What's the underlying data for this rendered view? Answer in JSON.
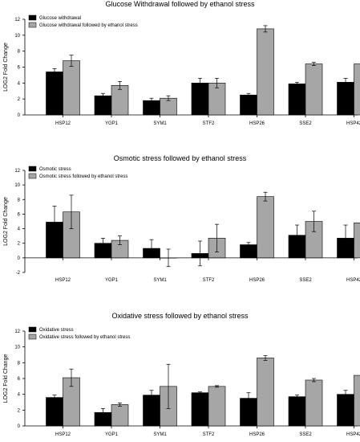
{
  "chart_data": [
    {
      "type": "bar",
      "title": "Glucose Withdrawal followed by ethanol stress",
      "ylabel": "LOG2 Fold Change",
      "ylim": [
        0,
        12
      ],
      "yticks": [
        0,
        2,
        4,
        6,
        8,
        10,
        12
      ],
      "categories": [
        "HSP12",
        "YGP1",
        "SYM1",
        "STF2",
        "HSP26",
        "SSE2",
        "HSP42"
      ],
      "legend_position": "top-left",
      "series": [
        {
          "name": "Glucose withdrawal",
          "color": "#000000",
          "values": [
            5.4,
            2.4,
            1.8,
            4.0,
            2.5,
            3.9,
            4.1
          ],
          "errors": [
            0.4,
            0.3,
            0.3,
            0.6,
            0.2,
            0.2,
            0.5
          ]
        },
        {
          "name": "Glucose withdrawal followed by ethanol stress",
          "color": "#a6a6a6",
          "values": [
            6.8,
            3.7,
            2.1,
            4.0,
            10.8,
            6.4,
            6.4
          ],
          "errors": [
            0.7,
            0.5,
            0.3,
            0.6,
            0.4,
            0.2,
            0.2
          ]
        }
      ]
    },
    {
      "type": "bar",
      "title": "Osmotic stress followed by ethanol stress",
      "ylabel": "LOG2 Fold Change",
      "ylim": [
        -2,
        12
      ],
      "yticks": [
        -2,
        0,
        2,
        4,
        6,
        8,
        10,
        12
      ],
      "categories": [
        "HSP12",
        "YGP1",
        "SYM1",
        "STF2",
        "HSP26",
        "SSE2",
        "HSP42"
      ],
      "legend_position": "top-left",
      "series": [
        {
          "name": "Osmotic stress",
          "color": "#000000",
          "values": [
            4.9,
            2.0,
            1.3,
            0.6,
            1.8,
            3.1,
            2.7
          ],
          "errors": [
            2.2,
            0.7,
            1.2,
            1.7,
            0.3,
            1.4,
            1.8
          ]
        },
        {
          "name": "Osmotic stress followed by ethanol stress",
          "color": "#a6a6a6",
          "values": [
            6.3,
            2.4,
            0.0,
            2.7,
            8.4,
            5.0,
            4.8
          ],
          "errors": [
            2.3,
            0.6,
            1.2,
            1.9,
            0.6,
            1.4,
            1.9
          ]
        }
      ]
    },
    {
      "type": "bar",
      "title": "Oxidative stress followed by ethanol stress",
      "ylabel": "LOG2 Fold Change",
      "ylim": [
        0,
        12
      ],
      "yticks": [
        0,
        2,
        4,
        6,
        8,
        10,
        12
      ],
      "categories": [
        "HSP12",
        "YGP1",
        "SYM1",
        "STF2",
        "HSP26",
        "SSE2",
        "HSP42"
      ],
      "legend_position": "top-left",
      "series": [
        {
          "name": "Oxidative stress",
          "color": "#000000",
          "values": [
            3.6,
            1.7,
            3.9,
            4.2,
            3.5,
            3.7,
            4.0
          ],
          "errors": [
            0.3,
            0.5,
            0.6,
            0.1,
            0.7,
            0.2,
            0.5
          ]
        },
        {
          "name": "Oxidative stress followed by ethanol stress",
          "color": "#a6a6a6",
          "values": [
            6.1,
            2.7,
            5.0,
            5.0,
            8.6,
            5.8,
            6.4
          ],
          "errors": [
            1.1,
            0.2,
            2.8,
            0.1,
            0.3,
            0.2,
            0.4
          ]
        }
      ]
    }
  ]
}
